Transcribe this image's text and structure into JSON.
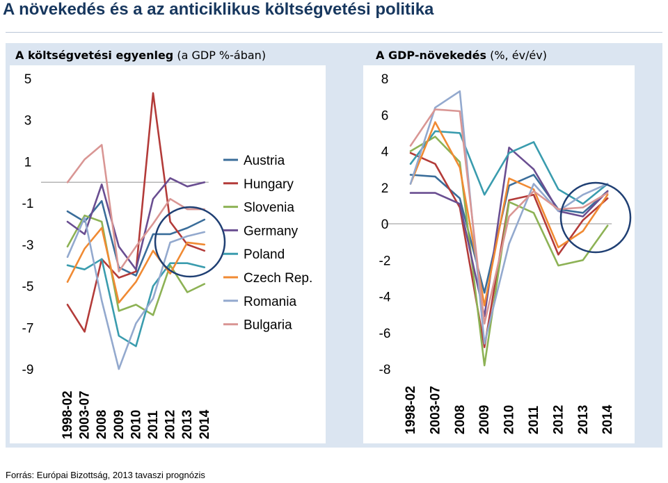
{
  "page": {
    "title": "A növekedés és a az anticiklikus költségvetési politika",
    "source": "Forrás: Európai Bizottság, 2013 tavaszi prognózis"
  },
  "colors": {
    "Austria": "#3a6d9a",
    "Hungary": "#b33b39",
    "Slovenia": "#8db255",
    "Germany": "#6a4e91",
    "Poland": "#3a9cae",
    "Czech Rep.": "#f08a33",
    "Romania": "#93a9ce",
    "Bulgaria": "#d99694",
    "circle": "#1f3f73",
    "zero_line": "#a6a6a6"
  },
  "chart_data": [
    {
      "type": "line",
      "title_bold": "A költségvetési egyenleg",
      "title_rest": "(a GDP %-ában)",
      "categories": [
        "1998-02",
        "2003-07",
        "2008",
        "2009",
        "2010",
        "2011",
        "2012",
        "2013",
        "2014"
      ],
      "ylim": [
        -9,
        5
      ],
      "yticks": [
        5,
        3,
        1,
        -1,
        -3,
        -5,
        -7,
        -9
      ],
      "legend_position": "right",
      "annotations": [
        "circle around 2013-2014"
      ],
      "series": [
        {
          "name": "Austria",
          "values": [
            -1.4,
            -1.9,
            -0.9,
            -4.1,
            -4.5,
            -2.5,
            -2.5,
            -2.2,
            -1.8
          ]
        },
        {
          "name": "Hungary",
          "values": [
            -5.9,
            -7.2,
            -3.7,
            -4.6,
            -4.3,
            4.3,
            -1.9,
            -3.0,
            -3.3
          ]
        },
        {
          "name": "Slovenia",
          "values": [
            -3.1,
            -1.6,
            -1.9,
            -6.2,
            -5.9,
            -6.4,
            -4.0,
            -5.3,
            -4.9
          ]
        },
        {
          "name": "Germany",
          "values": [
            -1.9,
            -2.5,
            -0.1,
            -3.1,
            -4.2,
            -0.8,
            0.2,
            -0.2,
            0.0
          ]
        },
        {
          "name": "Poland",
          "values": [
            -4.0,
            -4.2,
            -3.7,
            -7.4,
            -7.9,
            -5.0,
            -3.9,
            -3.9,
            -4.1
          ]
        },
        {
          "name": "Czech Rep.",
          "values": [
            -4.8,
            -3.2,
            -2.2,
            -5.8,
            -4.8,
            -3.3,
            -4.4,
            -2.9,
            -3.0
          ]
        },
        {
          "name": "Romania",
          "values": [
            -3.6,
            -1.7,
            -5.7,
            -9.0,
            -6.8,
            -5.6,
            -2.9,
            -2.6,
            -2.4
          ]
        },
        {
          "name": "Bulgaria",
          "values": [
            0.0,
            1.1,
            1.8,
            -4.3,
            -3.1,
            -2.0,
            -0.8,
            -1.3,
            -1.3
          ]
        }
      ]
    },
    {
      "type": "line",
      "title_bold": "A GDP-növekedés",
      "title_rest": "(%, év/év)",
      "categories": [
        "1998-02",
        "2003-07",
        "2008",
        "2009",
        "2010",
        "2011",
        "2012",
        "2013",
        "2014"
      ],
      "ylim": [
        -8,
        8
      ],
      "yticks": [
        8,
        6,
        4,
        2,
        0,
        -2,
        -4,
        -6,
        -8
      ],
      "annotations": [
        "circle around 2013-2014"
      ],
      "series": [
        {
          "name": "Austria",
          "values": [
            2.7,
            2.6,
            1.4,
            -3.8,
            2.1,
            2.7,
            0.8,
            0.6,
            1.8
          ]
        },
        {
          "name": "Hungary",
          "values": [
            3.9,
            3.3,
            0.9,
            -6.8,
            1.3,
            1.6,
            -1.7,
            0.2,
            1.4
          ]
        },
        {
          "name": "Slovenia",
          "values": [
            4.0,
            4.8,
            3.4,
            -7.8,
            1.2,
            0.6,
            -2.3,
            -2.0,
            -0.1
          ]
        },
        {
          "name": "Germany",
          "values": [
            1.7,
            1.7,
            1.1,
            -5.1,
            4.2,
            3.0,
            0.7,
            0.4,
            1.8
          ]
        },
        {
          "name": "Poland",
          "values": [
            3.3,
            5.1,
            5.0,
            1.6,
            3.9,
            4.5,
            1.9,
            1.1,
            2.2
          ]
        },
        {
          "name": "Czech Rep.",
          "values": [
            2.2,
            5.6,
            3.1,
            -4.5,
            2.5,
            1.9,
            -1.3,
            -0.4,
            1.6
          ]
        },
        {
          "name": "Romania",
          "values": [
            2.2,
            6.4,
            7.3,
            -6.6,
            -1.1,
            2.2,
            0.7,
            1.6,
            2.2
          ]
        },
        {
          "name": "Bulgaria",
          "values": [
            4.3,
            6.3,
            6.2,
            -5.5,
            0.4,
            1.8,
            0.8,
            0.9,
            1.7
          ]
        }
      ]
    }
  ]
}
